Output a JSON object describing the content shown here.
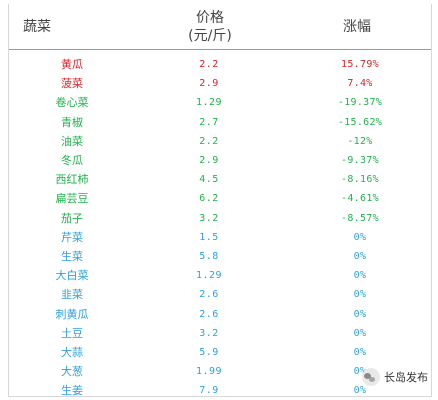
{
  "header": {
    "col_vegetable": "蔬菜",
    "col_price_line1": "价格",
    "col_price_line2": "(元/斤)",
    "col_change": "涨幅"
  },
  "colors": {
    "up": "#d8232a",
    "down": "#22b14c",
    "flat": "#2fa0d8"
  },
  "rows": [
    {
      "name": "黄瓜",
      "price": "2.2",
      "change": "15.79%",
      "trend": "up"
    },
    {
      "name": "菠菜",
      "price": "2.9",
      "change": "7.4%",
      "trend": "up"
    },
    {
      "name": "卷心菜",
      "price": "1.29",
      "change": "-19.37%",
      "trend": "down"
    },
    {
      "name": "青椒",
      "price": "2.7",
      "change": "-15.62%",
      "trend": "down"
    },
    {
      "name": "油菜",
      "price": "2.2",
      "change": "-12%",
      "trend": "down"
    },
    {
      "name": "冬瓜",
      "price": "2.9",
      "change": "-9.37%",
      "trend": "down"
    },
    {
      "name": "西红柿",
      "price": "4.5",
      "change": "-8.16%",
      "trend": "down"
    },
    {
      "name": "扁芸豆",
      "price": "6.2",
      "change": "-4.61%",
      "trend": "down"
    },
    {
      "name": "茄子",
      "price": "3.2",
      "change": "-8.57%",
      "trend": "down"
    },
    {
      "name": "芹菜",
      "price": "1.5",
      "change": "0%",
      "trend": "flat"
    },
    {
      "name": "生菜",
      "price": "5.8",
      "change": "0%",
      "trend": "flat"
    },
    {
      "name": "大白菜",
      "price": "1.29",
      "change": "0%",
      "trend": "flat"
    },
    {
      "name": "韭菜",
      "price": "2.6",
      "change": "0%",
      "trend": "flat"
    },
    {
      "name": "刺黄瓜",
      "price": "2.6",
      "change": "0%",
      "trend": "flat"
    },
    {
      "name": "土豆",
      "price": "3.2",
      "change": "0%",
      "trend": "flat"
    },
    {
      "name": "大蒜",
      "price": "5.9",
      "change": "0%",
      "trend": "flat"
    },
    {
      "name": "大葱",
      "price": "1.99",
      "change": "0%",
      "trend": "flat"
    },
    {
      "name": "生姜",
      "price": "7.9",
      "change": "0%",
      "trend": "flat"
    }
  ],
  "watermark": {
    "icon": "wechat-icon",
    "text": "长岛发布"
  }
}
